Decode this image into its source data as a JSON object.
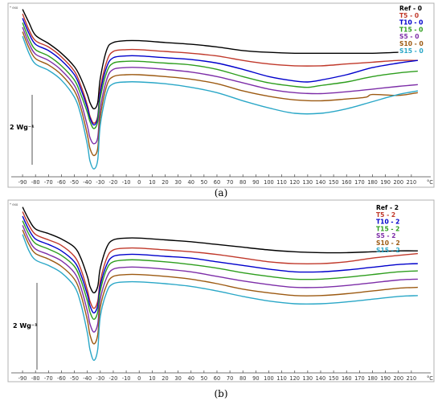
{
  "chart_data": [
    {
      "type": "line",
      "panel_label": "(a)",
      "corner_mark": "* exo",
      "scale_bar_label": "2 Wg⁻¹",
      "x_ticks": [
        -90,
        -80,
        -70,
        -60,
        -50,
        -40,
        -30,
        -20,
        -10,
        0,
        10,
        20,
        30,
        40,
        50,
        60,
        70,
        80,
        90,
        100,
        110,
        120,
        130,
        140,
        150,
        160,
        170,
        180,
        190,
        200,
        210
      ],
      "x_unit": "°C",
      "xlim": [
        -95,
        220
      ],
      "grid": false,
      "legend_position": "top-right",
      "series": [
        {
          "name": "Ref - 0",
          "color": "#000000",
          "x": [
            -90,
            -85,
            -80,
            -70,
            -60,
            -50,
            -45,
            -40,
            -38,
            -35,
            -32,
            -30,
            -25,
            -20,
            -10,
            0,
            20,
            40,
            60,
            80,
            100,
            120,
            140,
            160,
            180,
            200
          ],
          "y": [
            9.5,
            8.0,
            6.6,
            5.7,
            4.6,
            3.1,
            1.8,
            0.0,
            -0.9,
            -1.6,
            -0.9,
            1.8,
            5.0,
            5.8,
            6.0,
            6.0,
            5.8,
            5.6,
            5.3,
            4.9,
            4.7,
            4.6,
            4.6,
            4.6,
            4.6,
            4.7
          ]
        },
        {
          "name": "T5 - 0",
          "color": "#c0392b",
          "x": [
            -90,
            -85,
            -80,
            -70,
            -60,
            -50,
            -45,
            -40,
            -38,
            -35,
            -32,
            -30,
            -25,
            -20,
            -10,
            0,
            20,
            40,
            60,
            80,
            100,
            120,
            140,
            160,
            180,
            200,
            215
          ],
          "y": [
            9.0,
            7.2,
            6.0,
            5.3,
            4.2,
            2.6,
            1.0,
            -1.2,
            -2.4,
            -3.2,
            -2.4,
            0.6,
            3.7,
            4.8,
            5.0,
            5.0,
            4.8,
            4.6,
            4.3,
            3.8,
            3.4,
            3.2,
            3.2,
            3.4,
            3.6,
            3.8,
            3.8
          ]
        },
        {
          "name": "T10 - 0",
          "color": "#0000cc",
          "x": [
            -90,
            -85,
            -80,
            -70,
            -60,
            -50,
            -45,
            -40,
            -38,
            -35,
            -32,
            -30,
            -25,
            -20,
            -10,
            0,
            20,
            40,
            60,
            80,
            100,
            120,
            130,
            140,
            160,
            180,
            200,
            215
          ],
          "y": [
            8.5,
            6.8,
            5.6,
            4.9,
            3.8,
            2.2,
            0.6,
            -1.5,
            -2.6,
            -3.4,
            -2.6,
            0.2,
            3.1,
            4.1,
            4.3,
            4.3,
            4.1,
            3.9,
            3.5,
            2.8,
            2.0,
            1.5,
            1.4,
            1.6,
            2.2,
            3.0,
            3.5,
            3.8
          ]
        },
        {
          "name": "T15 - 0",
          "color": "#2e9e1e",
          "x": [
            -90,
            -85,
            -80,
            -70,
            -60,
            -50,
            -45,
            -40,
            -38,
            -35,
            -32,
            -30,
            -25,
            -20,
            -10,
            0,
            20,
            40,
            60,
            80,
            100,
            120,
            130,
            140,
            160,
            180,
            200,
            215
          ],
          "y": [
            8.0,
            6.2,
            5.0,
            4.3,
            3.2,
            1.6,
            0.0,
            -2.0,
            -3.0,
            -3.8,
            -3.0,
            -0.4,
            2.5,
            3.5,
            3.7,
            3.7,
            3.5,
            3.3,
            2.8,
            2.0,
            1.3,
            0.9,
            0.8,
            1.0,
            1.4,
            2.0,
            2.4,
            2.6
          ]
        },
        {
          "name": "S5 - 0",
          "color": "#7d2ea8",
          "x": [
            -90,
            -85,
            -80,
            -70,
            -60,
            -50,
            -45,
            -40,
            -38,
            -35,
            -32,
            -30,
            -25,
            -20,
            -10,
            0,
            20,
            40,
            60,
            80,
            100,
            120,
            140,
            160,
            180,
            200,
            215
          ],
          "y": [
            7.5,
            5.7,
            4.5,
            3.8,
            2.7,
            1.0,
            -0.8,
            -3.5,
            -4.8,
            -5.5,
            -4.8,
            -1.6,
            1.7,
            2.8,
            3.0,
            3.0,
            2.8,
            2.5,
            2.0,
            1.3,
            0.6,
            0.2,
            0.1,
            0.3,
            0.6,
            0.9,
            1.1
          ]
        },
        {
          "name": "S10 - 0",
          "color": "#9c5a12",
          "x": [
            -90,
            -85,
            -80,
            -70,
            -60,
            -50,
            -45,
            -40,
            -38,
            -35,
            -32,
            -30,
            -25,
            -20,
            -10,
            0,
            20,
            40,
            60,
            80,
            100,
            120,
            140,
            160,
            175,
            180,
            200,
            215
          ],
          "y": [
            7.0,
            5.2,
            4.0,
            3.3,
            2.2,
            0.4,
            -1.5,
            -4.5,
            -6.0,
            -6.8,
            -6.0,
            -2.5,
            1.0,
            2.0,
            2.2,
            2.2,
            2.0,
            1.7,
            1.2,
            0.4,
            -0.2,
            -0.6,
            -0.7,
            -0.5,
            -0.3,
            0.0,
            -0.1,
            0.2
          ]
        },
        {
          "name": "S15 - 0",
          "color": "#2aa7c7",
          "x": [
            -90,
            -85,
            -80,
            -70,
            -60,
            -50,
            -45,
            -40,
            -38,
            -35,
            -32,
            -30,
            -25,
            -20,
            -10,
            0,
            20,
            40,
            60,
            80,
            100,
            120,
            140,
            160,
            180,
            200,
            215
          ],
          "y": [
            6.5,
            4.6,
            3.4,
            2.7,
            1.6,
            -0.3,
            -2.3,
            -5.6,
            -7.4,
            -8.3,
            -7.3,
            -3.4,
            0.2,
            1.2,
            1.4,
            1.4,
            1.2,
            0.8,
            0.2,
            -0.7,
            -1.5,
            -2.1,
            -2.1,
            -1.6,
            -0.8,
            0.0,
            0.4
          ]
        }
      ]
    },
    {
      "type": "line",
      "panel_label": "(b)",
      "corner_mark": "* exo",
      "scale_bar_label": "2 Wg⁻¹",
      "x_ticks": [
        -90,
        -80,
        -70,
        -60,
        -50,
        -40,
        -30,
        -20,
        -10,
        0,
        10,
        20,
        30,
        40,
        50,
        60,
        70,
        80,
        90,
        100,
        110,
        120,
        130,
        140,
        150,
        160,
        170,
        180,
        190,
        200,
        210
      ],
      "x_unit": "°C",
      "xlim": [
        -95,
        220
      ],
      "grid": false,
      "legend_position": "top-right",
      "series": [
        {
          "name": "Ref - 2",
          "color": "#000000",
          "x": [
            -90,
            -85,
            -80,
            -70,
            -60,
            -50,
            -45,
            -40,
            -38,
            -35,
            -32,
            -30,
            -25,
            -20,
            -10,
            0,
            20,
            40,
            60,
            80,
            100,
            120,
            140,
            160,
            180,
            200,
            215
          ],
          "y": [
            9.0,
            7.6,
            6.6,
            6.1,
            5.5,
            4.6,
            3.4,
            1.4,
            0.3,
            -0.4,
            0.3,
            2.3,
            4.6,
            5.4,
            5.6,
            5.6,
            5.4,
            5.2,
            4.9,
            4.6,
            4.3,
            4.1,
            4.0,
            4.0,
            4.1,
            4.2,
            4.2
          ]
        },
        {
          "name": "T5 - 2",
          "color": "#c0392b",
          "x": [
            -90,
            -85,
            -80,
            -70,
            -60,
            -50,
            -45,
            -40,
            -38,
            -35,
            -32,
            -30,
            -25,
            -20,
            -10,
            0,
            20,
            40,
            60,
            80,
            100,
            120,
            140,
            160,
            180,
            200,
            215
          ],
          "y": [
            8.5,
            7.0,
            6.0,
            5.4,
            4.8,
            3.6,
            2.2,
            -0.1,
            -1.3,
            -2.1,
            -1.3,
            0.9,
            3.4,
            4.3,
            4.5,
            4.5,
            4.3,
            4.1,
            3.8,
            3.4,
            3.0,
            2.8,
            2.8,
            3.0,
            3.4,
            3.7,
            3.9
          ]
        },
        {
          "name": "T10 - 2",
          "color": "#0000cc",
          "x": [
            -90,
            -85,
            -80,
            -70,
            -60,
            -50,
            -45,
            -40,
            -38,
            -35,
            -32,
            -30,
            -25,
            -20,
            -10,
            0,
            20,
            40,
            60,
            80,
            100,
            120,
            140,
            160,
            180,
            200,
            215
          ],
          "y": [
            8.0,
            6.5,
            5.5,
            4.9,
            4.2,
            3.0,
            1.6,
            -0.6,
            -1.8,
            -2.6,
            -1.8,
            0.4,
            2.7,
            3.6,
            3.8,
            3.8,
            3.6,
            3.4,
            3.0,
            2.6,
            2.2,
            1.9,
            1.9,
            2.1,
            2.4,
            2.7,
            2.8
          ]
        },
        {
          "name": "T15 - 2",
          "color": "#2e9e1e",
          "x": [
            -90,
            -85,
            -80,
            -70,
            -60,
            -50,
            -45,
            -40,
            -38,
            -35,
            -32,
            -30,
            -25,
            -20,
            -10,
            0,
            20,
            40,
            60,
            80,
            100,
            120,
            140,
            160,
            180,
            200,
            215
          ],
          "y": [
            7.5,
            6.0,
            5.0,
            4.4,
            3.7,
            2.5,
            1.0,
            -1.3,
            -2.5,
            -3.3,
            -2.5,
            -0.2,
            2.2,
            3.0,
            3.2,
            3.2,
            3.0,
            2.7,
            2.3,
            1.8,
            1.4,
            1.1,
            1.1,
            1.3,
            1.6,
            1.9,
            2.0
          ]
        },
        {
          "name": "S5 - 2",
          "color": "#7d2ea8",
          "x": [
            -90,
            -85,
            -80,
            -70,
            -60,
            -50,
            -45,
            -40,
            -38,
            -35,
            -32,
            -30,
            -25,
            -20,
            -10,
            0,
            20,
            40,
            60,
            80,
            100,
            120,
            140,
            160,
            180,
            200,
            215
          ],
          "y": [
            7.0,
            5.4,
            4.4,
            3.8,
            3.1,
            1.8,
            0.2,
            -2.4,
            -3.8,
            -4.7,
            -3.8,
            -1.1,
            1.3,
            2.2,
            2.4,
            2.4,
            2.2,
            1.9,
            1.4,
            0.9,
            0.5,
            0.2,
            0.2,
            0.4,
            0.7,
            1.0,
            1.1
          ]
        },
        {
          "name": "S10 - 2",
          "color": "#9c5a12",
          "x": [
            -90,
            -85,
            -80,
            -70,
            -60,
            -50,
            -45,
            -40,
            -38,
            -35,
            -32,
            -30,
            -25,
            -20,
            -10,
            0,
            20,
            40,
            60,
            80,
            100,
            120,
            140,
            160,
            180,
            200,
            215
          ],
          "y": [
            6.5,
            4.9,
            3.9,
            3.3,
            2.5,
            1.1,
            -0.6,
            -3.4,
            -5.0,
            -6.0,
            -5.0,
            -2.0,
            0.5,
            1.4,
            1.6,
            1.6,
            1.4,
            1.1,
            0.6,
            0.0,
            -0.4,
            -0.7,
            -0.7,
            -0.5,
            -0.2,
            0.1,
            0.2
          ]
        },
        {
          "name": "S15 - 2",
          "color": "#2aa7c7",
          "x": [
            -90,
            -85,
            -80,
            -70,
            -60,
            -50,
            -45,
            -40,
            -38,
            -35,
            -32,
            -30,
            -25,
            -20,
            -10,
            0,
            20,
            40,
            60,
            80,
            100,
            120,
            140,
            160,
            180,
            200,
            215
          ],
          "y": [
            6.0,
            4.2,
            3.2,
            2.6,
            1.8,
            0.3,
            -1.6,
            -4.8,
            -6.6,
            -7.8,
            -6.6,
            -3.0,
            -0.3,
            0.6,
            0.8,
            0.8,
            0.6,
            0.3,
            -0.2,
            -0.8,
            -1.3,
            -1.6,
            -1.6,
            -1.4,
            -1.1,
            -0.8,
            -0.7
          ]
        }
      ]
    }
  ]
}
